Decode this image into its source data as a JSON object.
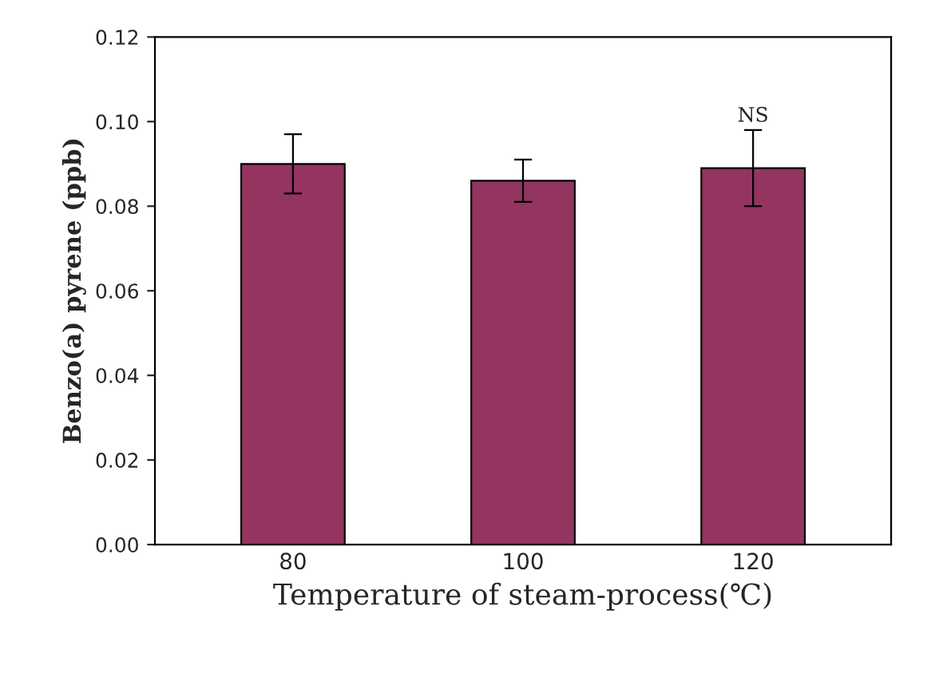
{
  "chart_data": {
    "type": "bar",
    "xlabel": "Temperature of steam-process(℃)",
    "ylabel": "Benzo(a) pyrene (ppb)",
    "categories": [
      "80",
      "100",
      "120"
    ],
    "values": [
      0.09,
      0.086,
      0.089
    ],
    "errors": [
      0.007,
      0.005,
      0.009
    ],
    "color": "#943461",
    "ylim": [
      0,
      0.12
    ],
    "yticks": [
      {
        "value": 0,
        "label": "0.00"
      },
      {
        "value": 0.02,
        "label": "0.02"
      },
      {
        "value": 0.04,
        "label": "0.04"
      },
      {
        "value": 0.06,
        "label": "0.06"
      },
      {
        "value": 0.08,
        "label": "0.08"
      },
      {
        "value": 0.1,
        "label": "0.10"
      },
      {
        "value": 0.12,
        "label": "0.12"
      }
    ],
    "grid": false,
    "annotations": [
      {
        "text": "NS",
        "x": "120",
        "y": 0.099
      }
    ]
  }
}
